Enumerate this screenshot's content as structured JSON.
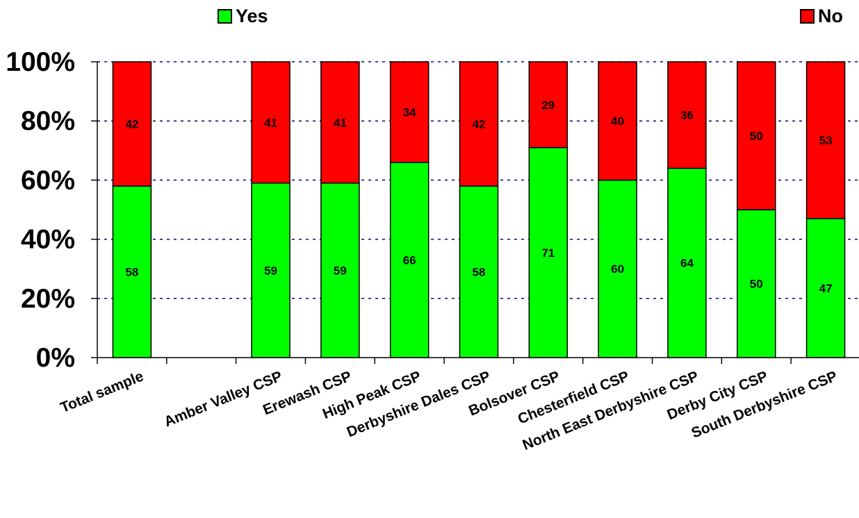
{
  "chart_data": {
    "type": "bar",
    "stacked": true,
    "categories": [
      "Total sample",
      "",
      "Amber Valley CSP",
      "Erewash CSP",
      "High Peak CSP",
      "Derbyshire Dales CSP",
      "Bolsover CSP",
      "Chesterfield CSP",
      "North East Derbyshire CSP",
      "Derby City CSP",
      "South Derbyshire CSP"
    ],
    "series": [
      {
        "name": "Yes",
        "color": "#00ff00",
        "values": [
          58,
          null,
          59,
          59,
          66,
          58,
          71,
          60,
          64,
          50,
          47
        ]
      },
      {
        "name": "No",
        "color": "#ff0000",
        "values": [
          42,
          null,
          41,
          41,
          34,
          42,
          29,
          40,
          36,
          50,
          53
        ]
      }
    ],
    "y_ticks": [
      "0%",
      "20%",
      "40%",
      "60%",
      "80%",
      "100%"
    ],
    "ylim": [
      0,
      100
    ],
    "grid": true,
    "legend_position": "top"
  }
}
